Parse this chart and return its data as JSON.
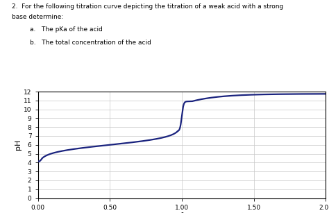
{
  "title_line1": "2.  For the following titration curve depicting the titration of a weak acid with a strong",
  "title_line2": "base determine:",
  "subtitle_a": "a.   The pKa of the acid",
  "subtitle_b": "b.   The total concentration of the acid",
  "xlabel": "f",
  "ylabel": "pH",
  "xlim": [
    0.0,
    2.0
  ],
  "ylim": [
    0,
    12
  ],
  "xticks": [
    0.0,
    0.5,
    1.0,
    1.5,
    2.0
  ],
  "yticks": [
    0,
    1,
    2,
    3,
    4,
    5,
    6,
    7,
    8,
    9,
    10,
    11,
    12
  ],
  "curve_color": "#1a237e",
  "curve_linewidth": 1.6,
  "grid_color": "#c8c8c8",
  "pka": 6.0,
  "initial_ph": 4.2,
  "final_ph": 11.75,
  "eq_ph_low": 7.2,
  "eq_ph_high": 10.9
}
